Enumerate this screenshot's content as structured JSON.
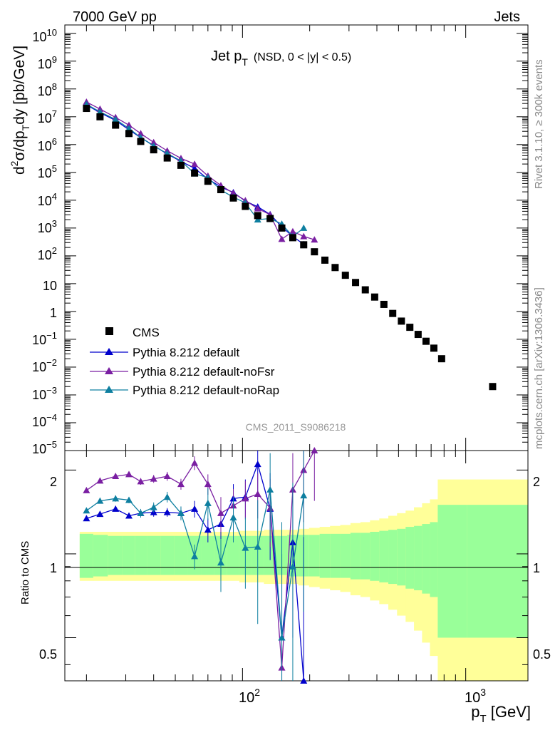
{
  "header": {
    "left": "7000 GeV pp",
    "right": "Jets"
  },
  "side_labels": {
    "rivet": "Rivet 3.1.10, ≥ 300k events",
    "mcplots": "mcplots.cern.ch [arXiv:1306.3436]"
  },
  "watermark": "CMS_2011_S9086218",
  "main_title": {
    "main": "Jet p",
    "sub": "T",
    "selection": "(NSD,   0 < |y| < 0.5)"
  },
  "ylabel": {
    "p1": "d",
    "p2": "2",
    "p3": "σ/dp",
    "p4": "T",
    "p5": "dy [pb/GeV]"
  },
  "ratio_ylabel": "Ratio to CMS",
  "xlabel": {
    "p1": "p",
    "p2": "T",
    "p3": " [GeV]"
  },
  "upper_ticks": [
    "10",
    "10",
    "10",
    "10",
    "10",
    "10",
    "10",
    "10",
    "10",
    "1",
    "10",
    "10",
    "10",
    "10",
    "10",
    "10"
  ],
  "upper_tick_exps": [
    "10",
    "9",
    "8",
    "7",
    "6",
    "5",
    "4",
    "3",
    "2",
    "",
    "",
    "−1",
    "−2",
    "−3",
    "−4",
    "−5"
  ],
  "x_tick_labels": {
    "t100": "10",
    "t100e": "2",
    "t1000": "10",
    "t1000e": "3"
  },
  "ratio_ticks": {
    "r2": "2",
    "r1": "1",
    "r05": "0.5"
  },
  "chart_data": {
    "type": "line",
    "xscale": "log",
    "yscale": "log",
    "xlim": [
      16,
      1900
    ],
    "ylim": [
      1e-05,
      20000000000
    ],
    "ratio_ylim": [
      0.35,
      2.35
    ],
    "legend_position": "bottom-left",
    "legend": [
      {
        "label": "CMS",
        "color": "#000000",
        "marker": "square"
      },
      {
        "label": "Pythia 8.212 default",
        "color": "#0000cc",
        "marker": "triangle"
      },
      {
        "label": "Pythia 8.212 default-noFsr",
        "color": "#7a1fa2",
        "marker": "triangle"
      },
      {
        "label": "Pythia 8.212 default-noRap",
        "color": "#0e7fa0",
        "marker": "triangle"
      }
    ],
    "cms": {
      "x": [
        20,
        23,
        27,
        31,
        35,
        40,
        46,
        53,
        61,
        70,
        80,
        91,
        103,
        117,
        133,
        150,
        168,
        188,
        210,
        234,
        260,
        289,
        321,
        355,
        391,
        430,
        471,
        515,
        562,
        612,
        664,
        720,
        780,
        1320
      ],
      "y": [
        20000000,
        10000000,
        5000000,
        2500000,
        1300000,
        650000,
        330000,
        180000,
        95000,
        48000,
        24000,
        12000,
        6000,
        2800,
        2200,
        1000,
        450,
        250,
        140,
        70,
        38,
        20,
        11,
        6,
        3.3,
        1.8,
        0.85,
        0.45,
        0.27,
        0.15,
        0.085,
        0.048,
        0.02,
        0.002
      ],
      "ratio_band_inner": [
        0.18,
        0.17,
        0.16,
        0.16,
        0.16,
        0.16,
        0.16,
        0.16,
        0.16,
        0.16,
        0.16,
        0.16,
        0.16,
        0.16,
        0.16,
        0.16,
        0.17,
        0.17,
        0.17,
        0.18,
        0.18,
        0.18,
        0.19,
        0.19,
        0.2,
        0.21,
        0.22,
        0.23,
        0.25,
        0.26,
        0.28,
        0.3,
        0.5,
        0.5
      ],
      "ratio_band_outer": [
        0.2,
        0.2,
        0.2,
        0.2,
        0.2,
        0.2,
        0.2,
        0.2,
        0.2,
        0.2,
        0.2,
        0.2,
        0.21,
        0.21,
        0.22,
        0.22,
        0.22,
        0.23,
        0.24,
        0.25,
        0.26,
        0.27,
        0.29,
        0.3,
        0.32,
        0.34,
        0.37,
        0.4,
        0.43,
        0.47,
        0.52,
        0.57,
        0.85,
        0.85
      ]
    },
    "series": [
      {
        "name": "Pythia 8.212 default",
        "x": [
          20,
          23,
          27,
          31,
          35,
          40,
          46,
          53,
          61,
          70,
          80,
          91,
          103,
          117,
          133,
          150,
          168,
          188
        ],
        "y": [
          27000000,
          14000000,
          7400000,
          3400000,
          1800000,
          920000,
          460000,
          250000,
          140000,
          58000,
          30000,
          19000,
          9300,
          5800,
          3100,
          1100,
          500,
          260
        ],
        "ratio": [
          1.34,
          1.39,
          1.45,
          1.37,
          1.4,
          1.41,
          1.41,
          1.4,
          1.45,
          1.22,
          1.28,
          1.58,
          1.6,
          2.1,
          1.45,
          0.5,
          1.1,
          0.35
        ],
        "ratio_err": [
          0,
          0.02,
          0.03,
          0.03,
          0.04,
          0.05,
          0.05,
          0.07,
          0.1,
          0.12,
          0.15,
          0.2,
          0.25,
          0.5,
          0.5,
          0.5,
          0.6,
          0.8
        ]
      },
      {
        "name": "Pythia 8.212 default-noFsr",
        "x": [
          20,
          23,
          27,
          31,
          35,
          40,
          46,
          53,
          61,
          70,
          80,
          91,
          103,
          117,
          133,
          150,
          168,
          188,
          210
        ],
        "y": [
          34000000,
          19000000,
          9500000,
          5000000,
          2500000,
          1200000,
          600000,
          320000,
          200000,
          75000,
          34000,
          18000,
          9800,
          5000,
          3000,
          400,
          750,
          500,
          380
        ],
        "ratio": [
          1.69,
          1.83,
          1.9,
          1.93,
          1.82,
          1.86,
          1.9,
          1.78,
          2.12,
          1.78,
          1.4,
          1.49,
          1.58,
          1.64,
          1.46,
          0.39,
          1.7,
          2.0,
          2.35
        ],
        "ratio_err": [
          0,
          0.03,
          0.04,
          0.04,
          0.05,
          0.06,
          0.07,
          0.08,
          0.12,
          0.15,
          0.2,
          0.22,
          0.25,
          0.3,
          0.4,
          0.5,
          0.6,
          0.7,
          0.8
        ]
      },
      {
        "name": "Pythia 8.212 default-noRap",
        "x": [
          20,
          23,
          27,
          31,
          35,
          40,
          46,
          53,
          61,
          70,
          80,
          91,
          103,
          117,
          133,
          150,
          168,
          188
        ],
        "y": [
          28000000,
          15000000,
          8000000,
          3800000,
          1800000,
          890000,
          480000,
          260000,
          90000,
          65000,
          23000,
          13000,
          8000,
          2000,
          2200,
          1400,
          500,
          1000
        ],
        "ratio": [
          1.43,
          1.55,
          1.58,
          1.56,
          1.4,
          1.47,
          1.6,
          1.4,
          0.98,
          1.52,
          0.93,
          1.35,
          1.05,
          1.06,
          1.7,
          0.5,
          0.9,
          1.62
        ],
        "ratio_err": [
          0,
          0.03,
          0.04,
          0.04,
          0.05,
          0.06,
          0.07,
          0.08,
          0.1,
          0.2,
          0.2,
          0.25,
          0.3,
          0.5,
          0.6,
          0.8,
          0.9,
          1.0
        ]
      }
    ]
  }
}
